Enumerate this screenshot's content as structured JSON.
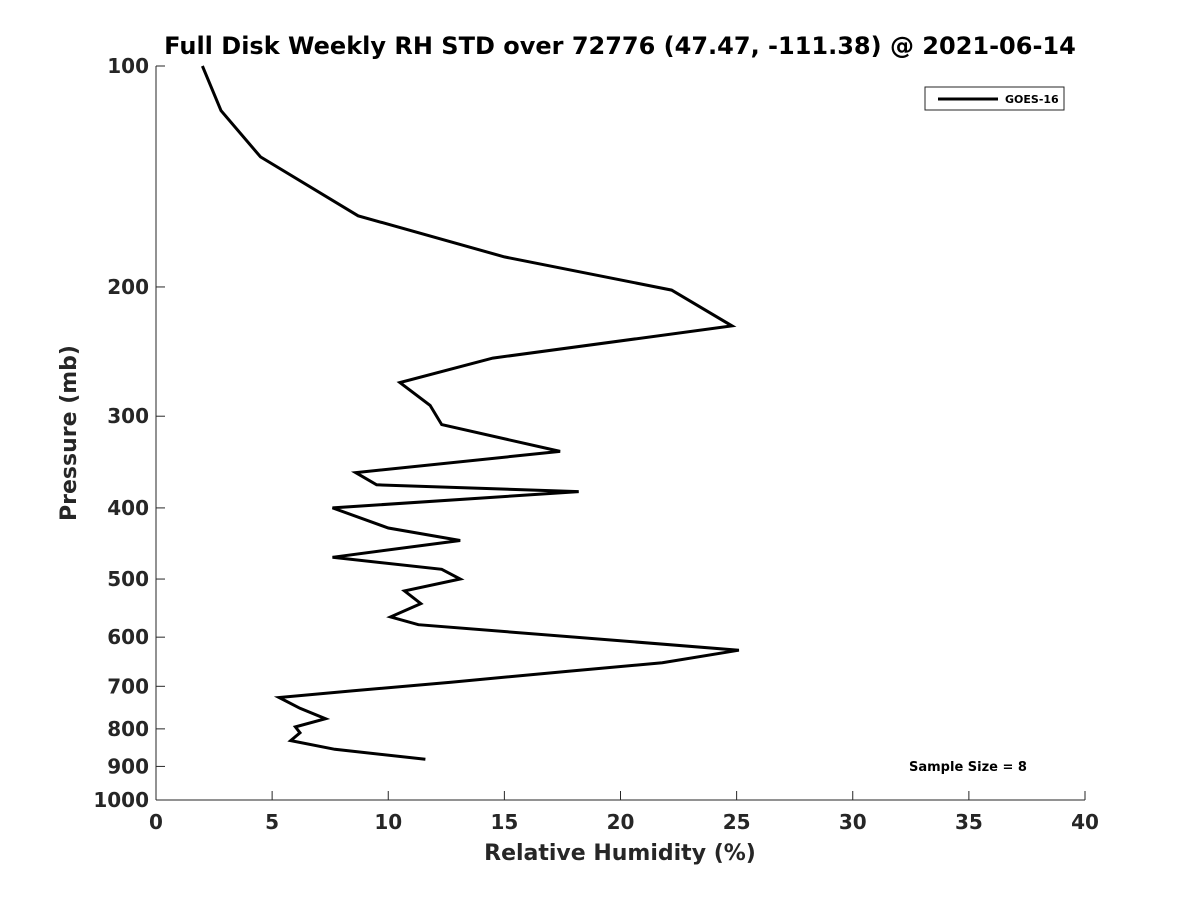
{
  "chart_data": {
    "type": "line",
    "title": "Full Disk Weekly RH STD over 72776 (47.47, -111.38) @ 2021-06-14",
    "xlabel": "Relative Humidity (%)",
    "ylabel": "Pressure (mb)",
    "xlim": [
      0,
      40
    ],
    "ylim": [
      100,
      1000
    ],
    "y_scale": "log",
    "y_reversed": true,
    "x_ticks": [
      "0",
      "5",
      "10",
      "15",
      "20",
      "25",
      "30",
      "35",
      "40"
    ],
    "y_ticks": [
      "100",
      "200",
      "300",
      "400",
      "500",
      "600",
      "700",
      "800",
      "900",
      "1000"
    ],
    "grid": false,
    "legend": {
      "position": "top-right",
      "entries": [
        "GOES-16"
      ]
    },
    "annotation": "Sample Size = 8",
    "series": [
      {
        "name": "GOES-16",
        "color": "#000000",
        "x": [
          2.0,
          2.8,
          4.5,
          8.7,
          15.0,
          22.2,
          24.8,
          14.5,
          10.5,
          11.8,
          12.3,
          17.4,
          8.6,
          9.5,
          18.2,
          7.6,
          10.0,
          13.1,
          7.6,
          12.3,
          13.1,
          10.7,
          11.4,
          10.1,
          11.3,
          25.1,
          21.8,
          17.7,
          12.7,
          8.5,
          5.3,
          6.2,
          7.3,
          6.0,
          6.2,
          5.8,
          7.7,
          11.6
        ],
        "y": [
          100,
          115,
          133,
          160,
          182,
          202,
          226,
          250,
          270,
          290,
          308,
          335,
          358,
          372,
          380,
          400,
          426,
          443,
          467,
          485,
          500,
          519,
          540,
          563,
          577,
          625,
          650,
          668,
          691,
          710,
          725,
          750,
          775,
          795,
          810,
          830,
          853,
          880
        ]
      }
    ]
  }
}
